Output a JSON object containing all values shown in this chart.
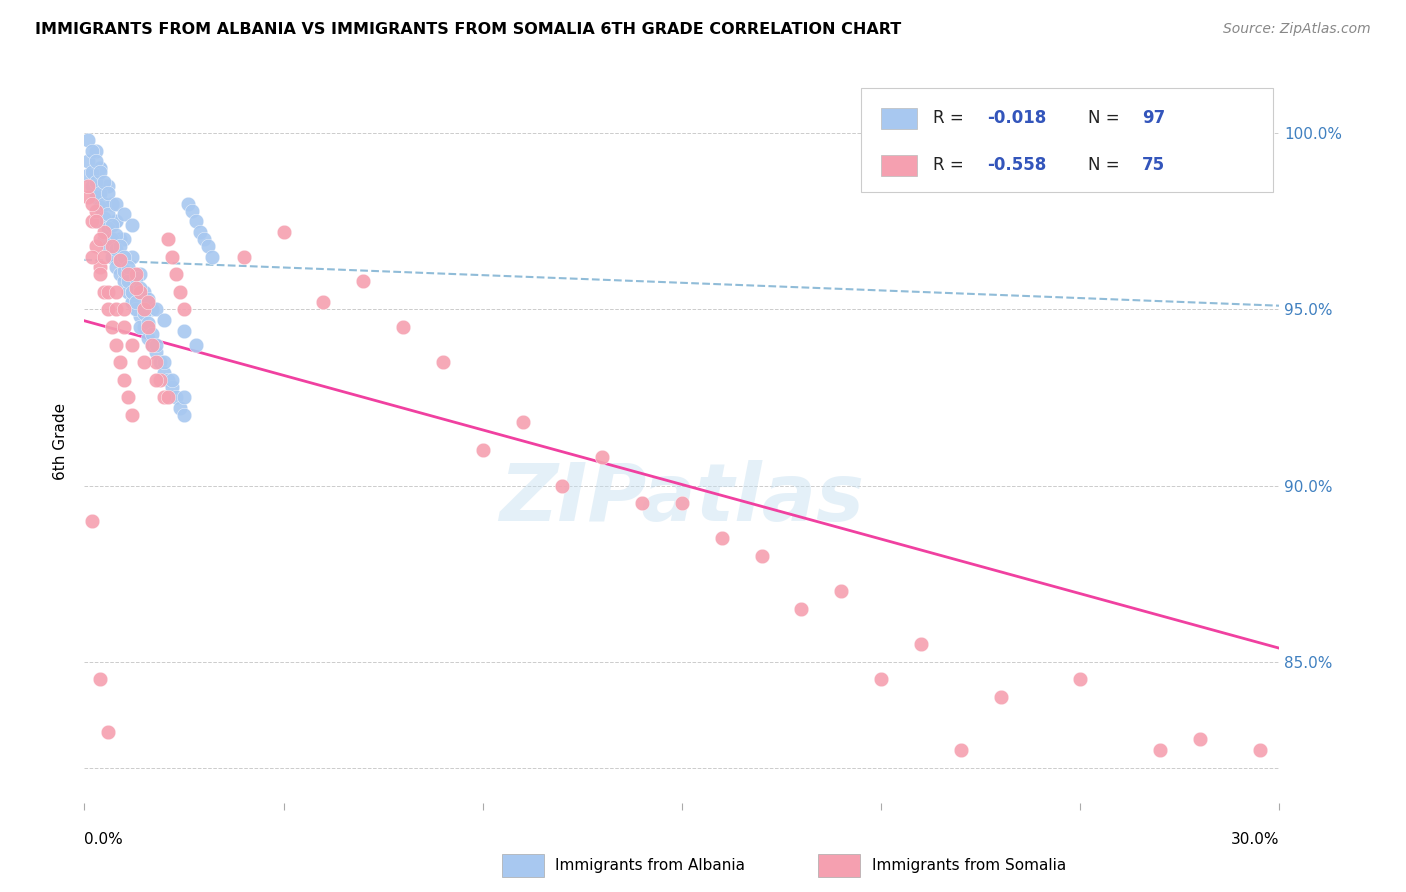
{
  "title": "IMMIGRANTS FROM ALBANIA VS IMMIGRANTS FROM SOMALIA 6TH GRADE CORRELATION CHART",
  "source": "Source: ZipAtlas.com",
  "ylabel": "6th Grade",
  "xlim": [
    0.0,
    0.3
  ],
  "ylim": [
    81.0,
    101.5
  ],
  "watermark": "ZIPatlas",
  "albania_color": "#a8c8f0",
  "somalia_color": "#f5a0b0",
  "albania_line_color": "#5070c8",
  "somalia_line_color": "#f040a0",
  "trendline_dashed_color": "#90bcd8",
  "albania_R": -0.018,
  "somalia_R": -0.558,
  "ytick_vals": [
    82.0,
    85.0,
    90.0,
    95.0,
    100.0
  ],
  "ytick_labels": [
    "",
    "85.0%",
    "90.0%",
    "95.0%",
    "100.0%"
  ],
  "albania_points_x": [
    0.002,
    0.003,
    0.005,
    0.006,
    0.007,
    0.008,
    0.009,
    0.01,
    0.011,
    0.012,
    0.013,
    0.014,
    0.015,
    0.016,
    0.017,
    0.018,
    0.019,
    0.02,
    0.021,
    0.022,
    0.023,
    0.024,
    0.025,
    0.026,
    0.027,
    0.028,
    0.029,
    0.03,
    0.031,
    0.032,
    0.004,
    0.005,
    0.007,
    0.008,
    0.009,
    0.01,
    0.011,
    0.012,
    0.013,
    0.014,
    0.003,
    0.004,
    0.006,
    0.007,
    0.008,
    0.01,
    0.012,
    0.014,
    0.015,
    0.017,
    0.001,
    0.002,
    0.003,
    0.004,
    0.005,
    0.006,
    0.007,
    0.008,
    0.009,
    0.01,
    0.011,
    0.012,
    0.013,
    0.015,
    0.016,
    0.017,
    0.018,
    0.02,
    0.022,
    0.025,
    0.001,
    0.002,
    0.003,
    0.004,
    0.005,
    0.006,
    0.007,
    0.008,
    0.009,
    0.01,
    0.011,
    0.013,
    0.014,
    0.016,
    0.018,
    0.02,
    0.025,
    0.028,
    0.001,
    0.002,
    0.003,
    0.004,
    0.005,
    0.006,
    0.008,
    0.01,
    0.012
  ],
  "albania_points_y": [
    98.5,
    97.5,
    97.0,
    96.8,
    96.5,
    96.2,
    96.0,
    95.8,
    95.5,
    95.2,
    95.0,
    94.8,
    94.5,
    94.2,
    94.0,
    93.8,
    93.5,
    93.2,
    93.0,
    92.8,
    92.5,
    92.2,
    92.0,
    98.0,
    97.8,
    97.5,
    97.2,
    97.0,
    96.8,
    96.5,
    99.0,
    98.5,
    98.0,
    97.5,
    97.0,
    96.5,
    96.0,
    95.5,
    95.0,
    94.5,
    99.5,
    99.0,
    98.5,
    98.0,
    97.5,
    97.0,
    96.5,
    96.0,
    95.5,
    95.0,
    98.8,
    98.5,
    98.2,
    97.9,
    97.6,
    97.3,
    97.0,
    96.7,
    96.4,
    96.1,
    95.8,
    95.5,
    95.2,
    94.9,
    94.6,
    94.3,
    94.0,
    93.5,
    93.0,
    92.5,
    99.2,
    98.9,
    98.6,
    98.3,
    98.0,
    97.7,
    97.4,
    97.1,
    96.8,
    96.5,
    96.2,
    95.9,
    95.6,
    95.3,
    95.0,
    94.7,
    94.4,
    94.0,
    99.8,
    99.5,
    99.2,
    98.9,
    98.6,
    98.3,
    98.0,
    97.7,
    97.4
  ],
  "somalia_points_x": [
    0.001,
    0.002,
    0.003,
    0.004,
    0.005,
    0.006,
    0.007,
    0.008,
    0.009,
    0.01,
    0.011,
    0.012,
    0.013,
    0.014,
    0.015,
    0.016,
    0.017,
    0.018,
    0.019,
    0.02,
    0.021,
    0.022,
    0.023,
    0.024,
    0.025,
    0.05,
    0.07,
    0.08,
    0.1,
    0.12,
    0.14,
    0.16,
    0.18,
    0.2,
    0.22,
    0.25,
    0.28,
    0.002,
    0.004,
    0.006,
    0.008,
    0.01,
    0.012,
    0.015,
    0.018,
    0.021,
    0.003,
    0.005,
    0.007,
    0.009,
    0.011,
    0.013,
    0.016,
    0.001,
    0.002,
    0.003,
    0.004,
    0.005,
    0.008,
    0.01,
    0.04,
    0.06,
    0.09,
    0.11,
    0.13,
    0.15,
    0.17,
    0.19,
    0.21,
    0.23,
    0.27,
    0.295,
    0.002,
    0.004,
    0.006
  ],
  "somalia_points_y": [
    98.2,
    97.5,
    96.8,
    96.2,
    95.5,
    95.0,
    94.5,
    94.0,
    93.5,
    93.0,
    92.5,
    92.0,
    96.0,
    95.5,
    95.0,
    94.5,
    94.0,
    93.5,
    93.0,
    92.5,
    97.0,
    96.5,
    96.0,
    95.5,
    95.0,
    97.2,
    95.8,
    94.5,
    91.0,
    90.0,
    89.5,
    88.5,
    86.5,
    84.5,
    82.5,
    84.5,
    82.8,
    96.5,
    96.0,
    95.5,
    95.0,
    94.5,
    94.0,
    93.5,
    93.0,
    92.5,
    97.8,
    97.2,
    96.8,
    96.4,
    96.0,
    95.6,
    95.2,
    98.5,
    98.0,
    97.5,
    97.0,
    96.5,
    95.5,
    95.0,
    96.5,
    95.2,
    93.5,
    91.8,
    90.8,
    89.5,
    88.0,
    87.0,
    85.5,
    84.0,
    82.5,
    82.5,
    89.0,
    84.5,
    83.0
  ]
}
